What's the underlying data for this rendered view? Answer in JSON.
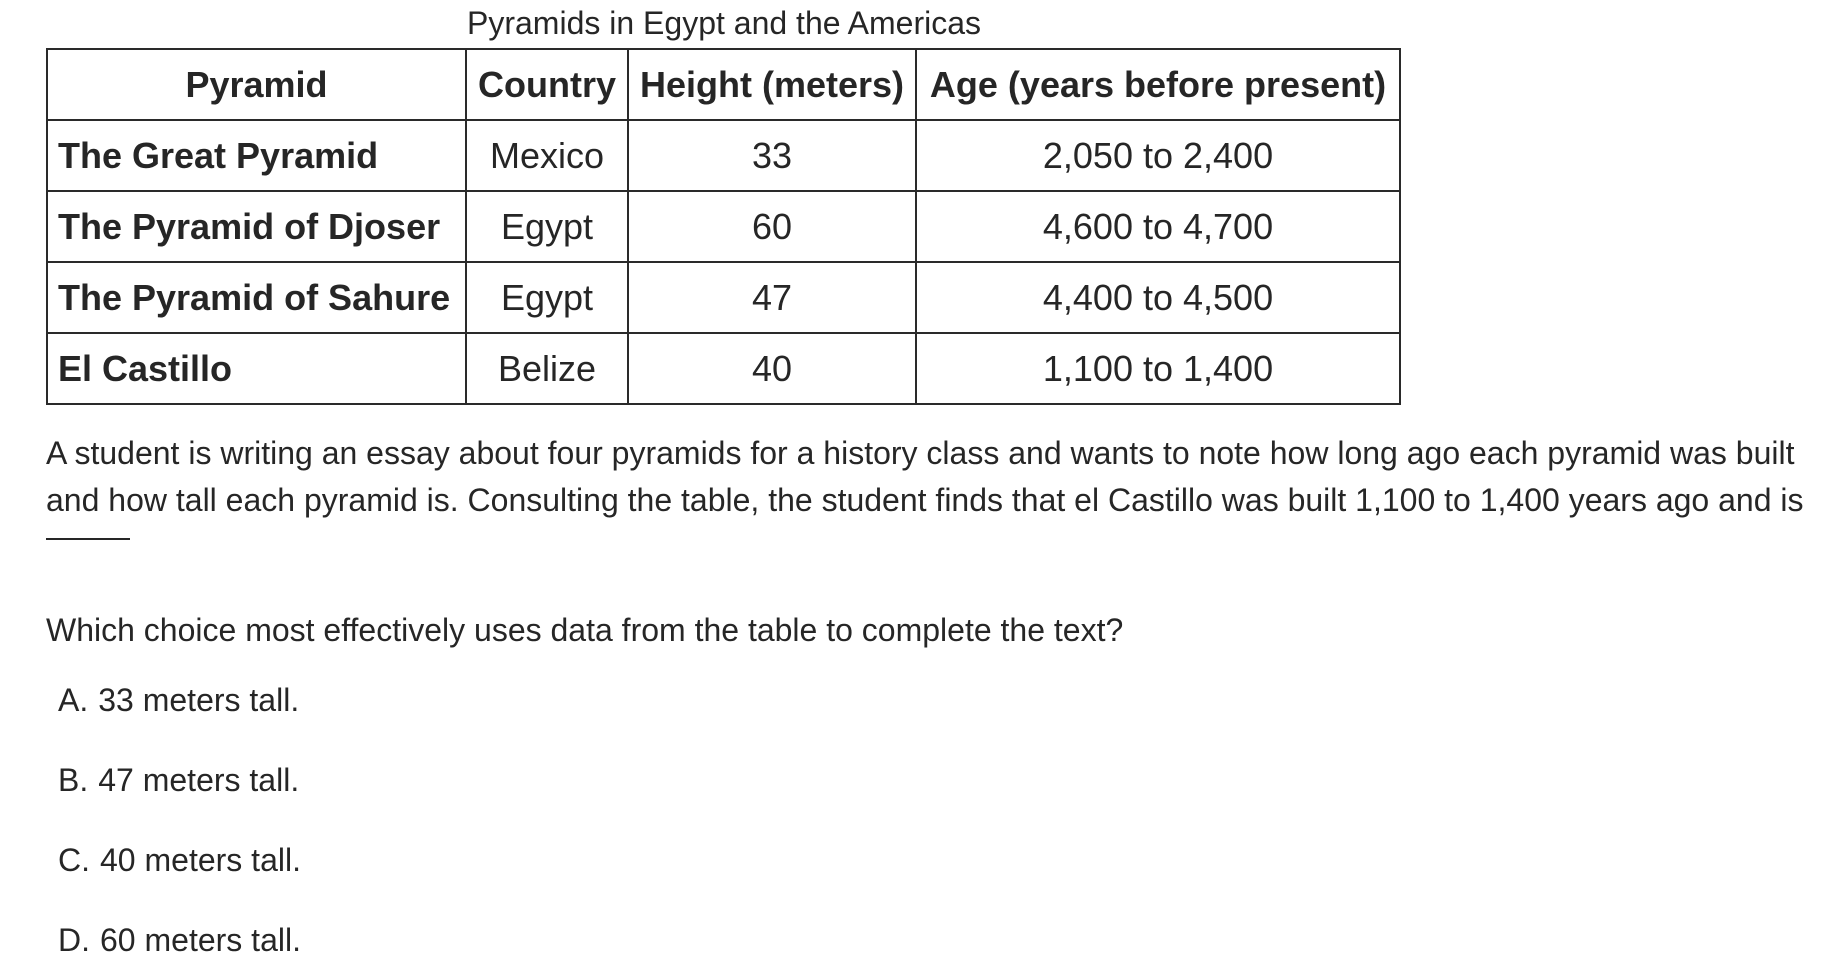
{
  "table": {
    "caption": "Pyramids in Egypt and the Americas",
    "headers": [
      "Pyramid",
      "Country",
      "Height (meters)",
      "Age (years before present)"
    ],
    "rows": [
      [
        "The Great Pyramid",
        "Mexico",
        "33",
        "2,050 to 2,400"
      ],
      [
        "The Pyramid of Djoser",
        "Egypt",
        "60",
        "4,600 to 4,700"
      ],
      [
        "The Pyramid of Sahure",
        "Egypt",
        "47",
        "4,400 to 4,500"
      ],
      [
        "El Castillo",
        "Belize",
        "40",
        "1,100 to 1,400"
      ]
    ]
  },
  "passage": {
    "line1": "A student is writing an essay about four pyramids for a history class and wants to note how long ago each pyramid was built",
    "line2": "and how tall each pyramid is. Consulting the table, the student finds that el Castillo was built 1,100 to 1,400 years ago and is"
  },
  "question": "Which choice most effectively uses data from the table to complete the text?",
  "choices": [
    {
      "letter": "A.",
      "text": "33 meters tall."
    },
    {
      "letter": "B.",
      "text": "47 meters tall."
    },
    {
      "letter": "C.",
      "text": "40 meters tall."
    },
    {
      "letter": "D.",
      "text": "60 meters tall."
    }
  ]
}
